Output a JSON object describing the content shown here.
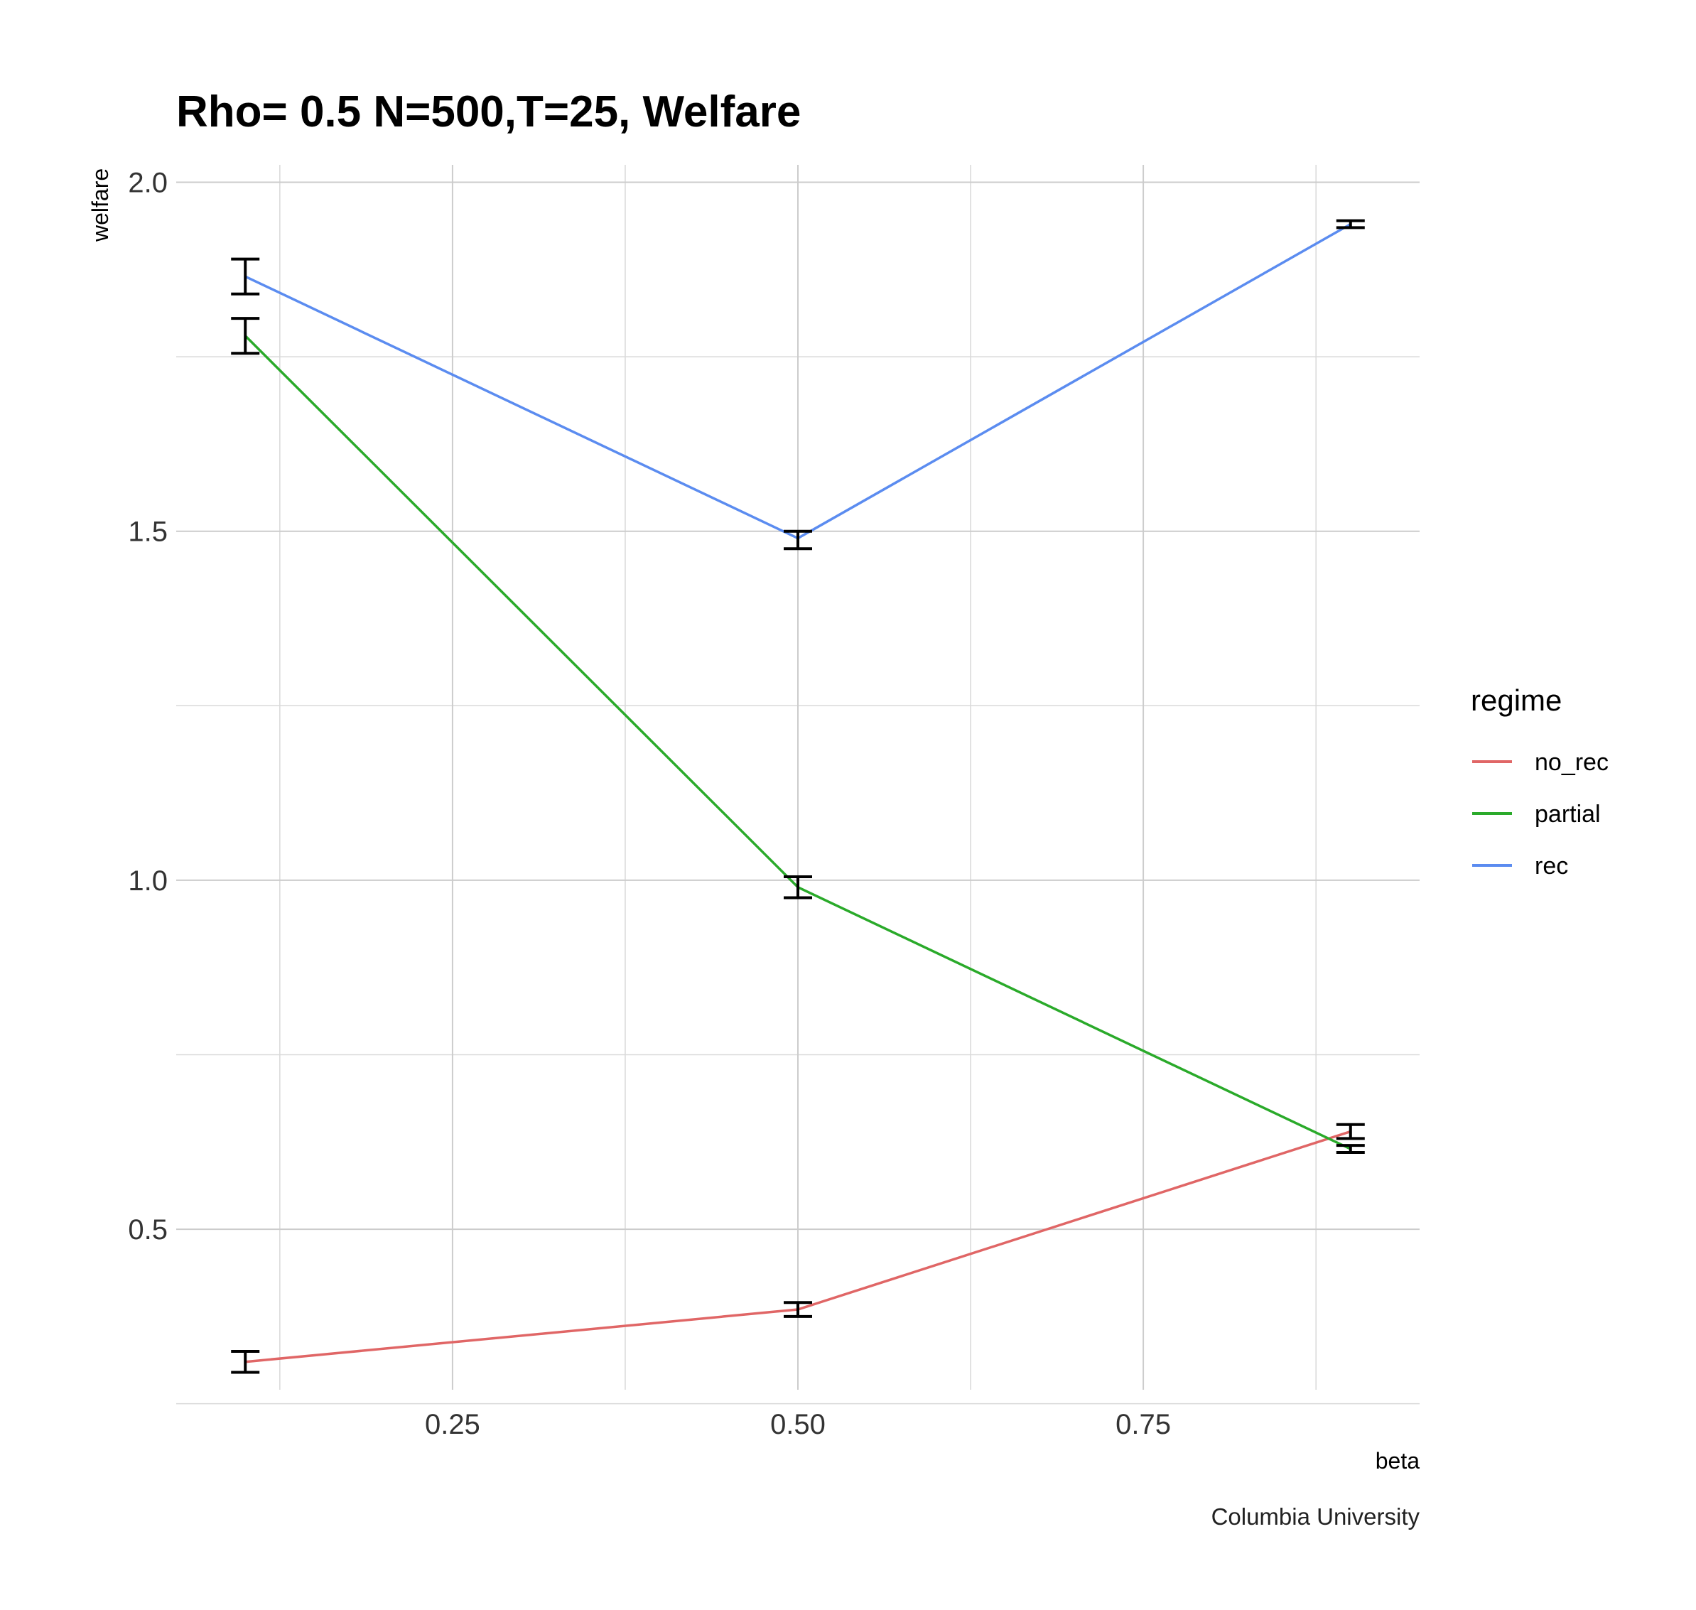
{
  "chart_data": {
    "type": "line",
    "title": "Rho= 0.5 N=500,T=25, Welfare",
    "xlabel": "beta",
    "ylabel": "welfare",
    "caption": "Columbia University",
    "xlim": [
      0.05,
      0.95
    ],
    "ylim": [
      0.27,
      2.025
    ],
    "x_ticks": [
      0.25,
      0.5,
      0.75
    ],
    "x_tick_labels": [
      "0.25",
      "0.50",
      "0.75"
    ],
    "x_minor": [
      0.125,
      0.375,
      0.625,
      0.875
    ],
    "y_ticks": [
      0.5,
      1.0,
      1.5,
      2.0
    ],
    "y_tick_labels": [
      "0.5",
      "1.0",
      "1.5",
      "2.0"
    ],
    "y_minor": [
      0.25,
      0.75,
      1.25,
      1.75
    ],
    "grid": true,
    "legend": {
      "title": "regime",
      "position": "right"
    },
    "x": [
      0.1,
      0.5,
      0.9
    ],
    "series": [
      {
        "name": "no_rec",
        "color": "#E06666",
        "values": [
          0.31,
          0.385,
          0.64
        ],
        "err_low": [
          0.295,
          0.375,
          0.63
        ],
        "err_high": [
          0.325,
          0.395,
          0.65
        ]
      },
      {
        "name": "partial",
        "color": "#2AAA2A",
        "values": [
          1.78,
          0.99,
          0.615
        ],
        "err_low": [
          1.755,
          0.975,
          0.61
        ],
        "err_high": [
          1.805,
          1.005,
          0.62
        ]
      },
      {
        "name": "rec",
        "color": "#5B8CF0",
        "values": [
          1.865,
          1.49,
          1.94
        ],
        "err_low": [
          1.84,
          1.475,
          1.935
        ],
        "err_high": [
          1.89,
          1.5,
          1.945
        ]
      }
    ]
  }
}
